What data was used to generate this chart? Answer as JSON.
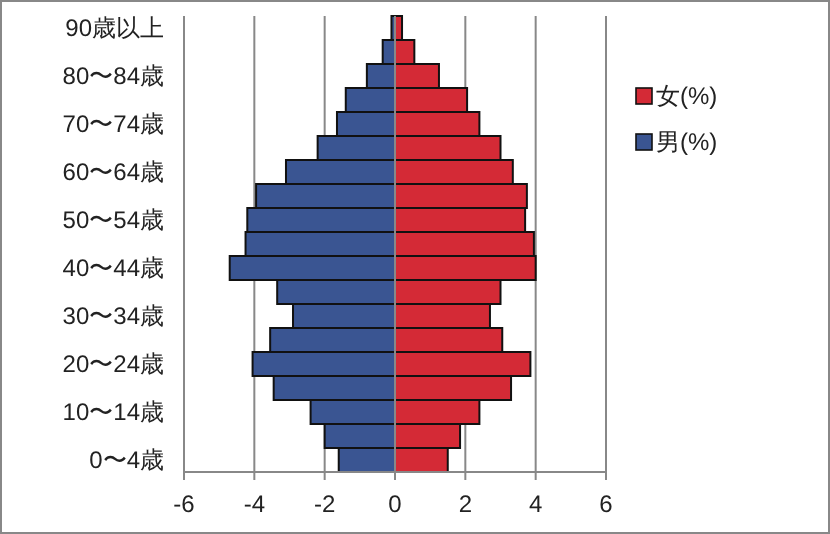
{
  "chart_data": {
    "type": "bar",
    "orientation": "horizontal",
    "categories": [
      "90歳以上",
      null,
      "80〜84歳",
      null,
      "70〜74歳",
      null,
      "60〜64歳",
      null,
      "50〜54歳",
      null,
      "40〜44歳",
      null,
      "30〜34歳",
      null,
      "20〜24歳",
      null,
      "10〜14歳",
      null,
      "0〜4歳"
    ],
    "series": [
      {
        "name": "女(%)",
        "color": "#d42a36",
        "values": [
          0.2,
          0.55,
          1.25,
          2.05,
          2.4,
          3.0,
          3.35,
          3.75,
          3.7,
          3.95,
          4.0,
          3.0,
          2.7,
          3.05,
          3.85,
          3.3,
          2.4,
          1.85,
          1.5
        ]
      },
      {
        "name": "男(%)",
        "color": "#3a5592",
        "values": [
          -0.1,
          -0.35,
          -0.8,
          -1.4,
          -1.65,
          -2.2,
          -3.1,
          -3.95,
          -4.2,
          -4.25,
          -4.7,
          -3.35,
          -2.9,
          -3.55,
          -4.05,
          -3.45,
          -2.4,
          -2.0,
          -1.6
        ]
      }
    ],
    "stacked": true,
    "xlim": [
      -6,
      6
    ],
    "xticks": [
      -6,
      -4,
      -2,
      0,
      2,
      4,
      6
    ],
    "grid": "x",
    "legend": "right"
  }
}
